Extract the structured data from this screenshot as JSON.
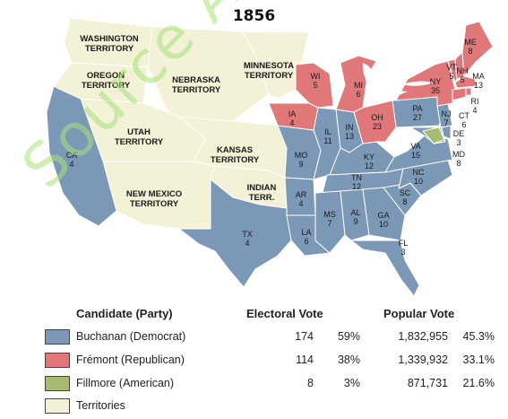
{
  "title": "1856",
  "colors": {
    "democrat": "#7b98b6",
    "republican": "#e0787a",
    "american": "#a7bb72",
    "territory": "#f3f1d6",
    "water": "#ffffff",
    "border": "#ffffff"
  },
  "watermark": "Source APUSH",
  "territories": [
    {
      "lines": [
        "WASHINGTON",
        "TERRITORY"
      ]
    },
    {
      "lines": [
        "OREGON",
        "TERRITORY"
      ]
    },
    {
      "lines": [
        "NEBRASKA",
        "TERRITORY"
      ]
    },
    {
      "lines": [
        "MINNESOTA",
        "TERRITORY"
      ]
    },
    {
      "lines": [
        "UTAH",
        "TERRITORY"
      ]
    },
    {
      "lines": [
        "KANSAS",
        "TERRITORY"
      ]
    },
    {
      "lines": [
        "NEW MEXICO",
        "TERRITORY"
      ]
    },
    {
      "lines": [
        "INDIAN",
        "TERR."
      ]
    }
  ],
  "states": [
    {
      "abbr": "CA",
      "ev": "4"
    },
    {
      "abbr": "TX",
      "ev": "4"
    },
    {
      "abbr": "IA",
      "ev": "4"
    },
    {
      "abbr": "MO",
      "ev": "9"
    },
    {
      "abbr": "AR",
      "ev": "4"
    },
    {
      "abbr": "LA",
      "ev": "6"
    },
    {
      "abbr": "WI",
      "ev": "5"
    },
    {
      "abbr": "IL",
      "ev": "11"
    },
    {
      "abbr": "MI",
      "ev": "6"
    },
    {
      "abbr": "IN",
      "ev": "13"
    },
    {
      "abbr": "OH",
      "ev": "23"
    },
    {
      "abbr": "KY",
      "ev": "12"
    },
    {
      "abbr": "TN",
      "ev": "12"
    },
    {
      "abbr": "MS",
      "ev": "7"
    },
    {
      "abbr": "AL",
      "ev": "9"
    },
    {
      "abbr": "GA",
      "ev": "10"
    },
    {
      "abbr": "FL",
      "ev": "3"
    },
    {
      "abbr": "SC",
      "ev": "8"
    },
    {
      "abbr": "NC",
      "ev": "10"
    },
    {
      "abbr": "VA",
      "ev": "15"
    },
    {
      "abbr": "PA",
      "ev": "27"
    },
    {
      "abbr": "NY",
      "ev": "35"
    },
    {
      "abbr": "ME",
      "ev": "8"
    },
    {
      "abbr": "VT",
      "ev": "5"
    },
    {
      "abbr": "NH",
      "ev": "5"
    },
    {
      "abbr": "MA",
      "ev": "13"
    },
    {
      "abbr": "RI",
      "ev": "4"
    },
    {
      "abbr": "CT",
      "ev": "6"
    },
    {
      "abbr": "NJ",
      "ev": "7"
    },
    {
      "abbr": "DE",
      "ev": "3"
    },
    {
      "abbr": "MD",
      "ev": "8"
    }
  ],
  "legend": {
    "headers": {
      "candidate": "Candidate (Party)",
      "electoral": "Electoral Vote",
      "popular": "Popular Vote"
    },
    "rows": [
      {
        "name": "Buchanan (Democrat)",
        "ev": "174",
        "ev_pct": "59%",
        "pop": "1,832,955",
        "pop_pct": "45.3%",
        "color": "#7b98b6"
      },
      {
        "name": "Frémont (Republican)",
        "ev": "114",
        "ev_pct": "38%",
        "pop": "1,339,932",
        "pop_pct": "33.1%",
        "color": "#e0787a"
      },
      {
        "name": "Fillmore (American)",
        "ev": "8",
        "ev_pct": "3%",
        "pop": "871,731",
        "pop_pct": "21.6%",
        "color": "#a7bb72"
      },
      {
        "name": "Territories",
        "ev": "",
        "ev_pct": "",
        "pop": "",
        "pop_pct": "",
        "color": "#f3f1d6"
      }
    ]
  }
}
